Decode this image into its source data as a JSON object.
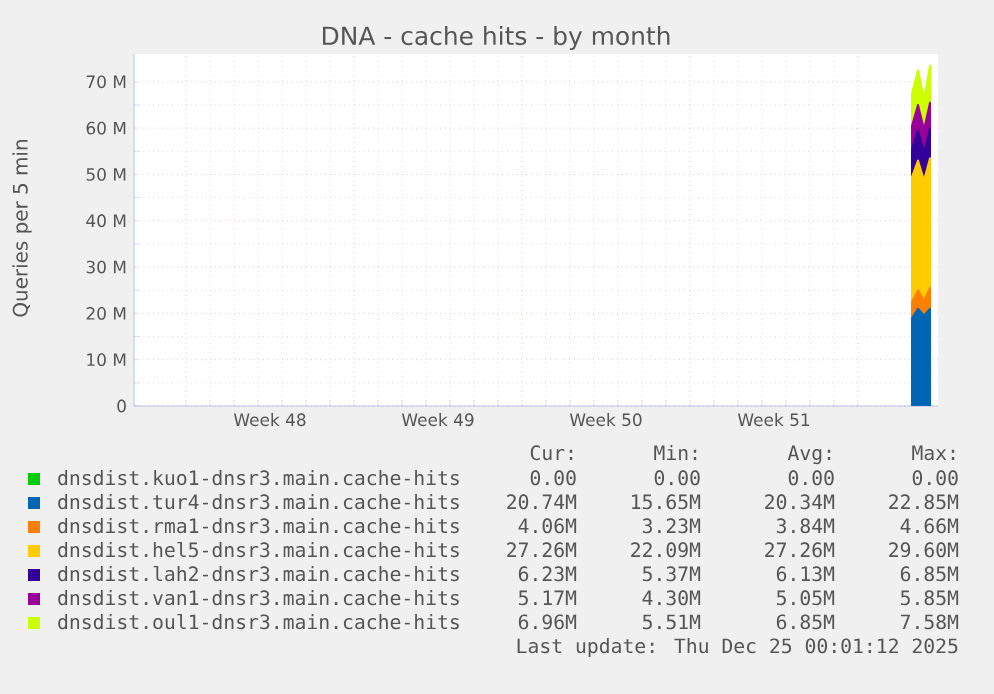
{
  "chart_data": {
    "type": "area",
    "title": "DNA - cache hits - by month",
    "ylabel": "Queries per 5 min",
    "stacked": true,
    "grid": true,
    "legend": "bottom",
    "xlim": [
      "2025-11-21T20:00",
      "2025-12-25T08:00"
    ],
    "xticks": [
      {
        "value": "2025-11-24",
        "label": null
      },
      {
        "value": "2025-11-27T12:00",
        "label": "Week 48"
      },
      {
        "value": "2025-12-01",
        "label": null
      },
      {
        "value": "2025-12-04T12:00",
        "label": "Week 49"
      },
      {
        "value": "2025-12-08",
        "label": null
      },
      {
        "value": "2025-12-11T12:00",
        "label": "Week 50"
      },
      {
        "value": "2025-12-15",
        "label": null
      },
      {
        "value": "2025-12-18T12:00",
        "label": "Week 51"
      },
      {
        "value": "2025-12-22",
        "label": null
      }
    ],
    "ylim": [
      0,
      76
    ],
    "yticks": [
      0,
      {
        "value": 10,
        "label": "10 M"
      },
      {
        "value": 20,
        "label": "20 M"
      },
      {
        "value": 30,
        "label": "30 M"
      },
      {
        "value": 40,
        "label": "40 M"
      },
      {
        "value": 50,
        "label": "50 M"
      },
      {
        "value": 60,
        "label": "60 M"
      },
      {
        "value": 70,
        "label": "70 M"
      }
    ],
    "x": [
      "2025-12-24T06:00",
      "2025-12-24T12:00",
      "2025-12-24T18:00",
      "2025-12-25T00:00"
    ],
    "series": [
      {
        "name": "dnsdist.kuo1-dnsr3.main.cache-hits",
        "color": "#00cc00",
        "values": [
          null,
          null,
          null,
          null
        ]
      },
      {
        "name": "dnsdist.tur4-dnsr3.main.cache-hits",
        "color": "#0066b3",
        "values": [
          19,
          21,
          19.5,
          21
        ]
      },
      {
        "name": "dnsdist.rma1-dnsr3.main.cache-hits",
        "color": "#ff8000",
        "values": [
          3.5,
          4,
          3.2,
          4.5
        ]
      },
      {
        "name": "dnsdist.hel5-dnsr3.main.cache-hits",
        "color": "#ffcc00",
        "values": [
          27,
          28,
          26,
          28
        ]
      },
      {
        "name": "dnsdist.lah2-dnsr3.main.cache-hits",
        "color": "#330099",
        "values": [
          6,
          6.5,
          6,
          6.5
        ]
      },
      {
        "name": "dnsdist.van1-dnsr3.main.cache-hits",
        "color": "#990099",
        "values": [
          5,
          5.5,
          5,
          5.5
        ]
      },
      {
        "name": "dnsdist.oul1-dnsr3.main.cache-hits",
        "color": "#ccff00",
        "values": [
          7,
          7.5,
          6.5,
          8
        ]
      }
    ],
    "annotations": [
      "Cur:",
      "Min:",
      "Avg:",
      "Max:",
      "0.00",
      "0.00",
      "0.00",
      "0.00",
      "20.74M",
      "15.65M",
      "20.34M",
      "22.85M",
      "4.06M",
      "3.23M",
      "3.84M",
      "4.66M",
      "27.26M",
      "22.09M",
      "27.26M",
      "29.60M",
      "6.23M",
      "5.37M",
      "6.13M",
      "6.85M",
      "5.17M",
      "4.30M",
      "5.05M",
      "5.85M",
      "6.96M",
      "5.51M",
      "6.85M",
      "7.58M",
      "Last update: Thu Dec 25 00:01:12 2025"
    ]
  }
}
